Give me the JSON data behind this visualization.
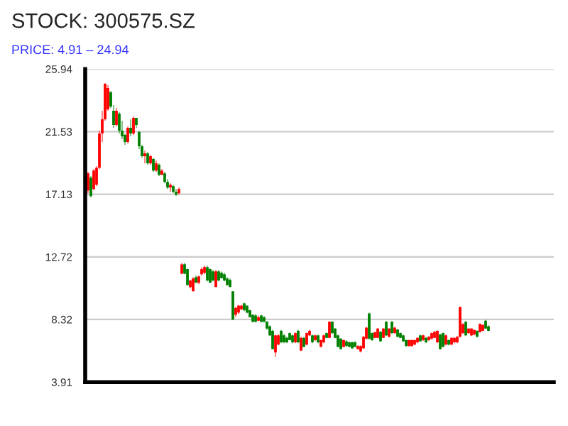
{
  "chart_data": {
    "type": "candlestick",
    "title": "STOCK: 300575.SZ",
    "subtitle": "PRICE: 4.91 – 24.94",
    "categories": [
      null,
      null,
      null,
      null,
      null,
      null,
      null,
      null,
      null,
      null,
      null,
      null,
      null,
      null,
      null,
      null,
      null,
      null,
      null,
      null,
      null,
      null,
      null,
      null,
      null,
      null,
      null,
      null,
      null,
      null,
      null,
      null,
      null,
      null,
      null,
      null,
      null,
      null,
      null,
      null,
      null,
      null,
      null,
      null,
      null,
      null,
      null,
      null,
      null,
      null,
      null,
      null,
      null,
      null,
      null,
      null,
      null,
      null,
      null,
      null,
      null,
      null,
      null,
      null,
      null,
      null,
      null,
      null,
      null,
      null,
      null,
      null,
      null,
      null,
      null,
      null,
      null,
      null,
      null,
      null,
      null,
      null,
      null,
      null,
      null,
      null,
      null,
      null,
      null,
      null,
      null,
      null,
      null,
      null,
      null,
      null,
      null,
      null,
      null,
      null,
      null,
      null,
      null,
      null,
      null,
      null,
      null,
      null,
      null,
      null,
      null,
      null,
      null,
      null,
      null,
      null,
      null,
      null,
      null,
      null,
      null,
      null,
      null,
      null,
      null,
      null,
      null,
      null,
      null,
      null,
      null,
      null,
      null,
      null,
      null,
      null,
      null,
      null,
      null,
      null,
      null,
      null,
      null,
      null,
      null,
      null,
      null,
      null,
      null,
      null,
      null,
      null,
      null,
      null,
      null,
      null,
      null,
      null,
      null,
      null,
      null,
      null,
      null,
      null
    ],
    "ohlc": [
      [
        17.4,
        18.7,
        17.2,
        18.6
      ],
      [
        18.3,
        18.4,
        16.9,
        17.0
      ],
      [
        17.5,
        18.9,
        17.4,
        18.8
      ],
      [
        17.8,
        19.1,
        17.7,
        19.0
      ],
      [
        19.0,
        21.6,
        18.9,
        21.4
      ],
      [
        21.4,
        23.0,
        20.8,
        22.4
      ],
      [
        22.4,
        24.94,
        22.3,
        24.9
      ],
      [
        23.1,
        24.8,
        23.0,
        24.6
      ],
      [
        24.3,
        24.4,
        23.2,
        23.3
      ],
      [
        23.0,
        23.4,
        21.8,
        22.0
      ],
      [
        22.0,
        23.2,
        21.9,
        23.0
      ],
      [
        22.8,
        22.9,
        21.4,
        21.6
      ],
      [
        21.6,
        22.3,
        21.0,
        21.2
      ],
      [
        21.3,
        21.4,
        20.6,
        20.8
      ],
      [
        20.8,
        21.9,
        20.7,
        21.8
      ],
      [
        21.8,
        22.4,
        21.2,
        21.4
      ],
      [
        21.4,
        22.6,
        21.3,
        22.5
      ],
      [
        22.5,
        22.5,
        21.8,
        22.0
      ],
      [
        21.5,
        21.6,
        20.3,
        20.5
      ],
      [
        20.5,
        20.6,
        19.7,
        19.8
      ],
      [
        19.8,
        20.2,
        19.3,
        20.0
      ],
      [
        20.0,
        20.1,
        19.2,
        19.3
      ],
      [
        19.3,
        19.9,
        19.2,
        19.8
      ],
      [
        19.6,
        19.7,
        18.7,
        18.8
      ],
      [
        18.8,
        19.5,
        18.7,
        19.3
      ],
      [
        19.2,
        19.3,
        18.4,
        18.5
      ],
      [
        18.5,
        18.9,
        18.5,
        18.8
      ],
      [
        18.6,
        18.7,
        17.9,
        18.0
      ],
      [
        18.0,
        18.2,
        17.5,
        17.6
      ],
      [
        17.6,
        17.9,
        17.3,
        17.8
      ],
      [
        17.7,
        17.8,
        17.2,
        17.3
      ],
      [
        17.3,
        17.5,
        17.0,
        17.1
      ],
      [
        17.2,
        17.6,
        17.1,
        17.5
      ],
      [
        11.54,
        12.3,
        11.5,
        12.19
      ],
      [
        12.2,
        12.3,
        11.5,
        11.54
      ],
      [
        11.86,
        11.9,
        10.7,
        10.74
      ],
      [
        10.6,
        11.1,
        10.5,
        11.06
      ],
      [
        10.3,
        11.3,
        10.3,
        11.2
      ],
      [
        11.3,
        11.4,
        10.9,
        10.9
      ],
      [
        10.9,
        11.4,
        10.8,
        11.35
      ],
      [
        11.5,
        12.0,
        11.4,
        11.86
      ],
      [
        11.6,
        12.1,
        11.5,
        12.0
      ],
      [
        12.0,
        12.1,
        11.0,
        11.06
      ],
      [
        11.86,
        11.9,
        10.9,
        10.9
      ],
      [
        11.7,
        11.8,
        11.0,
        11.06
      ],
      [
        10.6,
        11.8,
        10.6,
        11.7
      ],
      [
        11.7,
        11.8,
        11.0,
        11.06
      ],
      [
        11.6,
        11.7,
        11.2,
        11.22
      ],
      [
        11.5,
        11.6,
        11.0,
        11.06
      ],
      [
        11.2,
        11.3,
        10.7,
        10.74
      ],
      [
        11.1,
        11.2,
        10.6,
        10.6
      ],
      [
        10.3,
        10.3,
        8.3,
        8.3
      ],
      [
        8.65,
        9.2,
        8.5,
        9.13
      ],
      [
        8.8,
        9.35,
        8.7,
        9.29
      ],
      [
        9.03,
        9.35,
        9.0,
        9.29
      ],
      [
        9.45,
        9.5,
        8.9,
        8.97
      ],
      [
        9.29,
        9.3,
        8.75,
        8.8
      ],
      [
        8.97,
        9.0,
        8.45,
        8.48
      ],
      [
        8.64,
        8.7,
        8.1,
        8.16
      ],
      [
        8.6,
        8.7,
        8.1,
        8.16
      ],
      [
        8.23,
        8.6,
        8.2,
        8.48
      ],
      [
        8.6,
        8.65,
        8.1,
        8.16
      ],
      [
        8.48,
        8.55,
        8.1,
        8.16
      ],
      [
        8.16,
        8.2,
        7.6,
        7.68
      ],
      [
        7.84,
        7.9,
        7.15,
        7.2
      ],
      [
        7.52,
        7.6,
        6.2,
        6.23
      ],
      [
        6.0,
        7.25,
        5.68,
        7.2
      ],
      [
        6.55,
        7.3,
        6.5,
        7.2
      ],
      [
        7.52,
        7.6,
        6.65,
        6.71
      ],
      [
        7.2,
        7.3,
        6.65,
        6.71
      ],
      [
        7.03,
        7.1,
        6.65,
        6.71
      ],
      [
        7.36,
        7.4,
        6.85,
        6.87
      ],
      [
        7.2,
        7.25,
        6.65,
        6.71
      ],
      [
        6.71,
        7.4,
        6.65,
        7.36
      ],
      [
        7.52,
        7.6,
        6.65,
        6.71
      ],
      [
        6.13,
        7.1,
        6.1,
        7.03
      ],
      [
        7.03,
        7.1,
        6.35,
        6.39
      ],
      [
        6.55,
        7.4,
        6.5,
        7.36
      ],
      [
        7.2,
        7.6,
        7.15,
        7.52
      ],
      [
        7.2,
        7.25,
        6.65,
        6.71
      ],
      [
        6.87,
        7.25,
        6.8,
        7.2
      ],
      [
        7.2,
        7.25,
        6.65,
        6.71
      ],
      [
        6.39,
        6.9,
        6.35,
        6.87
      ],
      [
        6.71,
        7.25,
        6.65,
        7.2
      ],
      [
        7.36,
        7.4,
        7.0,
        7.03
      ],
      [
        7.03,
        8.2,
        7.0,
        8.16
      ],
      [
        8.16,
        8.2,
        7.3,
        7.36
      ],
      [
        7.68,
        7.7,
        7.0,
        7.03
      ],
      [
        7.2,
        7.25,
        6.35,
        6.39
      ],
      [
        6.97,
        7.0,
        6.2,
        6.23
      ],
      [
        6.39,
        6.9,
        6.35,
        6.87
      ],
      [
        6.78,
        6.85,
        6.4,
        6.45
      ],
      [
        6.71,
        6.75,
        6.35,
        6.39
      ],
      [
        6.71,
        6.75,
        6.25,
        6.29
      ],
      [
        6.71,
        6.8,
        6.35,
        6.39
      ],
      [
        6.23,
        6.5,
        6.2,
        6.45
      ],
      [
        6.07,
        6.5,
        6.0,
        6.45
      ],
      [
        6.29,
        7.15,
        6.25,
        7.1
      ],
      [
        6.97,
        7.8,
        6.9,
        7.74
      ],
      [
        8.74,
        8.8,
        6.9,
        6.97
      ],
      [
        7.36,
        7.4,
        6.8,
        6.87
      ],
      [
        7.03,
        7.45,
        7.0,
        7.42
      ],
      [
        7.03,
        7.7,
        7.0,
        7.68
      ],
      [
        7.45,
        7.5,
        6.75,
        6.78
      ],
      [
        7.03,
        7.7,
        7.0,
        7.68
      ],
      [
        8.16,
        8.2,
        7.15,
        7.2
      ],
      [
        7.1,
        7.7,
        7.05,
        7.68
      ],
      [
        8.16,
        8.2,
        7.3,
        7.36
      ],
      [
        7.36,
        7.8,
        7.3,
        7.74
      ],
      [
        7.61,
        7.65,
        7.05,
        7.1
      ],
      [
        7.36,
        7.4,
        7.0,
        7.03
      ],
      [
        7.2,
        7.25,
        6.75,
        6.78
      ],
      [
        6.87,
        6.9,
        6.4,
        6.45
      ],
      [
        6.45,
        6.9,
        6.4,
        6.87
      ],
      [
        6.45,
        6.9,
        6.4,
        6.87
      ],
      [
        6.55,
        6.9,
        6.5,
        6.87
      ],
      [
        6.71,
        7.05,
        6.65,
        7.03
      ],
      [
        7.2,
        7.25,
        6.75,
        6.78
      ],
      [
        6.87,
        7.25,
        6.8,
        7.2
      ],
      [
        7.03,
        7.1,
        6.65,
        6.71
      ],
      [
        6.87,
        7.15,
        6.8,
        7.1
      ],
      [
        6.97,
        7.4,
        6.9,
        7.36
      ],
      [
        7.03,
        7.5,
        7.0,
        7.45
      ],
      [
        6.71,
        7.55,
        6.65,
        7.52
      ],
      [
        7.26,
        7.3,
        6.2,
        6.23
      ],
      [
        7.36,
        7.4,
        6.35,
        6.39
      ],
      [
        6.55,
        7.25,
        6.5,
        7.2
      ],
      [
        6.87,
        6.9,
        6.5,
        6.55
      ],
      [
        6.55,
        7.05,
        6.5,
        7.03
      ],
      [
        6.71,
        7.05,
        6.65,
        7.03
      ],
      [
        6.71,
        7.15,
        6.65,
        7.1
      ],
      [
        7.1,
        9.22,
        7.05,
        9.2
      ],
      [
        7.36,
        8.05,
        7.3,
        8.0
      ],
      [
        8.16,
        8.2,
        7.15,
        7.2
      ],
      [
        7.36,
        7.7,
        7.3,
        7.68
      ],
      [
        7.2,
        7.7,
        7.15,
        7.68
      ],
      [
        7.26,
        7.6,
        7.2,
        7.58
      ],
      [
        7.52,
        7.55,
        7.05,
        7.1
      ],
      [
        7.42,
        8.05,
        7.4,
        8.0
      ],
      [
        7.52,
        7.95,
        7.5,
        7.94
      ],
      [
        8.23,
        8.3,
        7.65,
        7.68
      ],
      [
        7.84,
        7.9,
        7.5,
        7.52
      ],
      null,
      null,
      null,
      null,
      null,
      null,
      null,
      null,
      null,
      null,
      null,
      null,
      null,
      null,
      null,
      null,
      null,
      null,
      null,
      null,
      null,
      null
    ],
    "colors": [
      "#ff0000",
      "#008000",
      "#ff0000",
      "#ff0000",
      "#ff0000",
      "#ff0000",
      "#ff0000",
      "#ff0000",
      "#008000",
      "#008000",
      "#ff0000",
      "#008000",
      "#008000",
      "#008000",
      "#ff0000",
      "#008000",
      "#ff0000",
      "#008000",
      "#008000",
      "#008000",
      "#ff0000",
      "#008000",
      "#ff0000",
      "#008000",
      "#ff0000",
      "#008000",
      "#ff0000",
      "#008000",
      "#008000",
      "#ff0000",
      "#008000",
      "#008000",
      "#ff0000",
      "#ff0000",
      "#008000",
      "#008000",
      "#ff0000",
      "#ff0000",
      "#008000",
      "#ff0000",
      "#ff0000",
      "#ff0000",
      "#008000",
      "#008000",
      "#008000",
      "#ff0000",
      "#008000",
      "#008000",
      "#008000",
      "#008000",
      "#008000",
      "#008000",
      "#ff0000",
      "#ff0000",
      "#ff0000",
      "#008000",
      "#008000",
      "#008000",
      "#008000",
      "#008000",
      "#ff0000",
      "#008000",
      "#008000",
      "#008000",
      "#008000",
      "#008000",
      "#ff0000",
      "#ff0000",
      "#008000",
      "#008000",
      "#008000",
      "#008000",
      "#008000",
      "#ff0000",
      "#008000",
      "#ff0000",
      "#008000",
      "#ff0000",
      "#ff0000",
      "#008000",
      "#ff0000",
      "#008000",
      "#ff0000",
      "#ff0000",
      "#008000",
      "#ff0000",
      "#008000",
      "#008000",
      "#008000",
      "#008000",
      "#ff0000",
      "#008000",
      "#008000",
      "#008000",
      "#008000",
      "#ff0000",
      "#ff0000",
      "#ff0000",
      "#ff0000",
      "#008000",
      "#008000",
      "#ff0000",
      "#ff0000",
      "#008000",
      "#ff0000",
      "#008000",
      "#ff0000",
      "#008000",
      "#ff0000",
      "#008000",
      "#008000",
      "#008000",
      "#008000",
      "#ff0000",
      "#ff0000",
      "#ff0000",
      "#ff0000",
      "#008000",
      "#ff0000",
      "#008000",
      "#ff0000",
      "#ff0000",
      "#ff0000",
      "#ff0000",
      "#008000",
      "#008000",
      "#ff0000",
      "#008000",
      "#ff0000",
      "#ff0000",
      "#ff0000",
      "#ff0000",
      "#ff0000",
      "#008000",
      "#ff0000",
      "#ff0000",
      "#ff0000",
      "#008000",
      "#ff0000",
      "#ff0000",
      "#008000",
      "#008000",
      null,
      null,
      null,
      null,
      null,
      null,
      null,
      null,
      null,
      null,
      null,
      null,
      null,
      null,
      null,
      null,
      null,
      null,
      null,
      null,
      null,
      null
    ],
    "ylim": [
      3.91,
      25.94
    ],
    "yticks": [
      3.91,
      8.32,
      12.72,
      17.13,
      21.53,
      25.94
    ],
    "grid": "y",
    "tick_labels": "y"
  }
}
